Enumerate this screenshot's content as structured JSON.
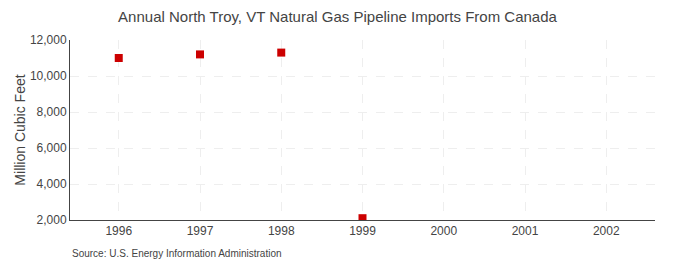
{
  "chart_data": {
    "type": "scatter",
    "title": "Annual North Troy, VT Natural Gas Pipeline Imports From Canada",
    "ylabel": "Million Cubic Feet",
    "annotations": [
      "Source: U.S. Energy Information Administration"
    ],
    "x": [
      1996,
      1997,
      1998,
      1999
    ],
    "values": [
      11000,
      11200,
      11300,
      2100
    ],
    "color": "#cc0000",
    "marker": "square",
    "xlim": [
      1995.4,
      2002.6
    ],
    "xticks": [
      1996,
      1997,
      1998,
      1999,
      2000,
      2001,
      2002
    ],
    "ylim": [
      2000,
      12000
    ],
    "yticks": [
      {
        "value": 2000,
        "label": "2,000"
      },
      {
        "value": 4000,
        "label": "4,000"
      },
      {
        "value": 6000,
        "label": "6,000"
      },
      {
        "value": 8000,
        "label": "8,000"
      },
      {
        "value": 10000,
        "label": "10,000"
      },
      {
        "value": 12000,
        "label": "12,000"
      }
    ],
    "grid": true
  }
}
